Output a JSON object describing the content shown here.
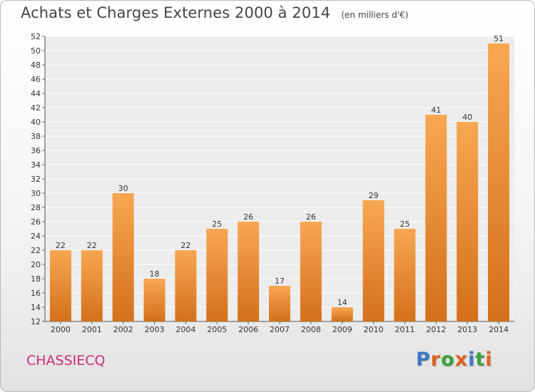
{
  "header": {
    "title": "Achats et Charges Externes 2000 à 2014",
    "unit": "(en milliers d'€)"
  },
  "footer": {
    "commune": "CHASSIECQ",
    "brand": "Proxiti",
    "brand_letter_colors": [
      "#3a78c3",
      "#e0621f",
      "#3aa13a",
      "#e0621f",
      "#3a78c3",
      "#3aa13a",
      "#e0621f"
    ]
  },
  "chart_data": {
    "type": "bar",
    "categories": [
      "2000",
      "2001",
      "2002",
      "2003",
      "2004",
      "2005",
      "2006",
      "2007",
      "2008",
      "2009",
      "2010",
      "2011",
      "2012",
      "2013",
      "2014"
    ],
    "values": [
      22,
      22,
      30,
      18,
      22,
      25,
      26,
      17,
      26,
      14,
      29,
      25,
      41,
      40,
      51
    ],
    "ylim": [
      12,
      52
    ],
    "yticks": [
      12,
      14,
      16,
      18,
      20,
      22,
      24,
      26,
      28,
      30,
      32,
      34,
      36,
      38,
      40,
      42,
      44,
      46,
      48,
      50,
      52
    ],
    "grid": true,
    "bar_color_light": "#f7a752",
    "bar_color_dark": "#d4701a"
  }
}
